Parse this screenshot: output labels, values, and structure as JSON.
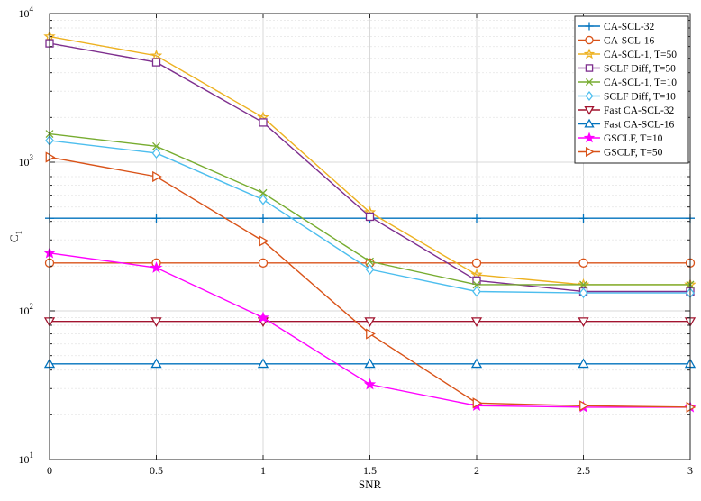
{
  "chart_data": {
    "type": "line",
    "title": "",
    "xlabel": "SNR",
    "ylabel": "C",
    "ylabel_subscript": "1",
    "y_scale": "log",
    "xlim": [
      0,
      3
    ],
    "ylim": [
      10,
      10000
    ],
    "grid": true,
    "legend_position": "top-right",
    "x_ticks": [
      {
        "value": 0,
        "label": "0"
      },
      {
        "value": 0.5,
        "label": "0.5"
      },
      {
        "value": 1,
        "label": "1"
      },
      {
        "value": 1.5,
        "label": "1.5"
      },
      {
        "value": 2,
        "label": "2"
      },
      {
        "value": 2.5,
        "label": "2.5"
      },
      {
        "value": 3,
        "label": "3"
      }
    ],
    "y_ticks": [
      {
        "value": 10,
        "base": "10",
        "exp": "1"
      },
      {
        "value": 100,
        "base": "10",
        "exp": "2"
      },
      {
        "value": 1000,
        "base": "10",
        "exp": "3"
      },
      {
        "value": 10000,
        "base": "10",
        "exp": "4"
      }
    ],
    "x": [
      0,
      0.5,
      1,
      1.5,
      2,
      2.5,
      3
    ],
    "series": [
      {
        "name": "CA-SCL-32",
        "color": "#0072BD",
        "marker": "plus",
        "values": [
          420,
          420,
          420,
          420,
          420,
          420,
          420
        ]
      },
      {
        "name": "CA-SCL-16",
        "color": "#D95319",
        "marker": "circle",
        "values": [
          210,
          210,
          210,
          210,
          210,
          210,
          210
        ]
      },
      {
        "name": "CA-SCL-1, T=50",
        "color": "#EDB120",
        "marker": "star",
        "values": [
          7000,
          5200,
          2000,
          460,
          175,
          150,
          150
        ]
      },
      {
        "name": "SCLF Diff, T=50",
        "color": "#7E2F8E",
        "marker": "square",
        "values": [
          6300,
          4700,
          1850,
          430,
          160,
          135,
          135
        ]
      },
      {
        "name": "CA-SCL-1, T=10",
        "color": "#77AC30",
        "marker": "x",
        "values": [
          1550,
          1280,
          620,
          215,
          150,
          150,
          150
        ]
      },
      {
        "name": "SCLF Diff, T=10",
        "color": "#4DBEEE",
        "marker": "diamond",
        "values": [
          1400,
          1150,
          560,
          190,
          135,
          132,
          132
        ]
      },
      {
        "name": "Fast CA-SCL-32",
        "color": "#A2142F",
        "marker": "triangle-down",
        "values": [
          85,
          85,
          85,
          85,
          85,
          85,
          85
        ]
      },
      {
        "name": "Fast CA-SCL-16",
        "color": "#0072BD",
        "marker": "triangle-up",
        "values": [
          44,
          44,
          44,
          44,
          44,
          44,
          44
        ]
      },
      {
        "name": "GSCLF, T=10",
        "color": "#FF00FF",
        "marker": "pentagram",
        "values": [
          245,
          195,
          90,
          32,
          23,
          22.5,
          22.5
        ]
      },
      {
        "name": "GSCLF, T=50",
        "color": "#D95319",
        "marker": "triangle-right",
        "values": [
          1080,
          800,
          295,
          70,
          24,
          23,
          22.5
        ]
      }
    ]
  }
}
